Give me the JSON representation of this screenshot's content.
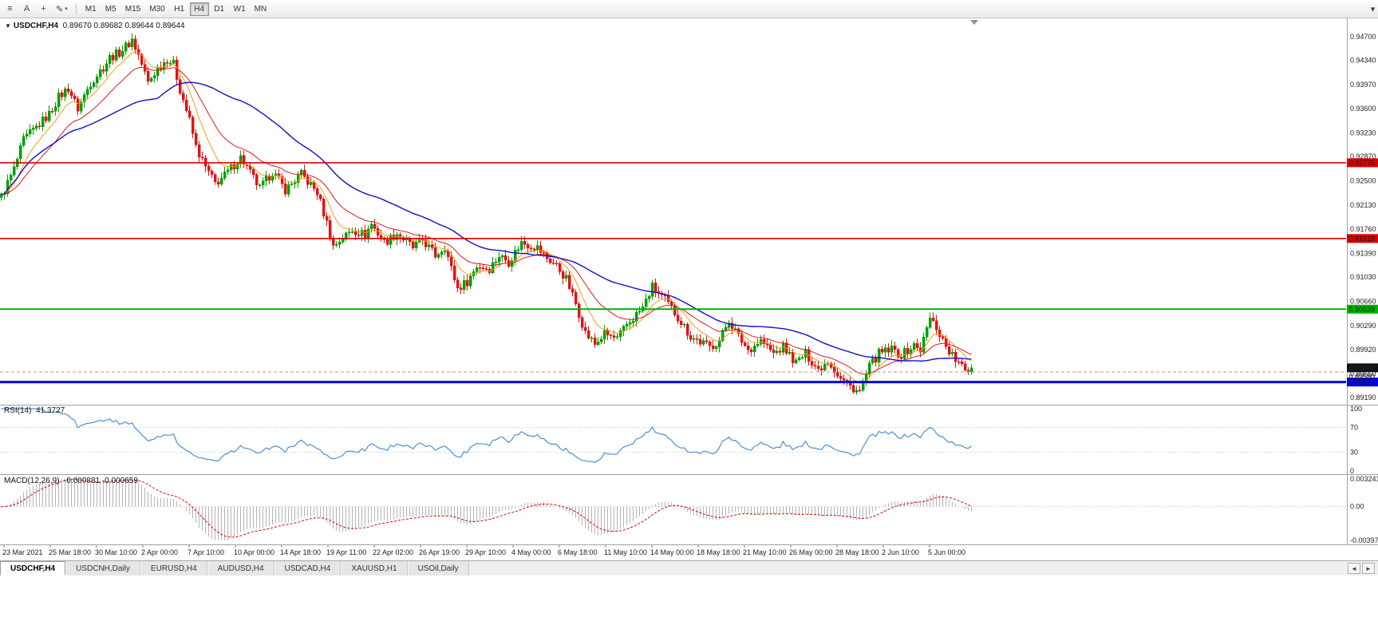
{
  "toolbar": {
    "hamburger_icon": "≡",
    "text_tool_label": "A",
    "crosshair_icon": "+",
    "pencil_icon": "✎",
    "dropdown_icon": "▾",
    "overflow_icon": "▾",
    "timeframes": [
      {
        "label": "M1",
        "active": false
      },
      {
        "label": "M5",
        "active": false
      },
      {
        "label": "M15",
        "active": false
      },
      {
        "label": "M30",
        "active": false
      },
      {
        "label": "H1",
        "active": false
      },
      {
        "label": "H4",
        "active": true
      },
      {
        "label": "D1",
        "active": false
      },
      {
        "label": "W1",
        "active": false
      },
      {
        "label": "MN",
        "active": false
      }
    ]
  },
  "chart": {
    "expand_icon": "▼",
    "symbol": "USDCHF,H4",
    "ohlc": "0.89670 0.89682 0.89644 0.89644",
    "price_axis": [
      "0.94700",
      "0.94340",
      "0.93970",
      "0.93600",
      "0.93230",
      "0.92870",
      "0.92500",
      "0.92130",
      "0.91760",
      "0.91390",
      "0.91030",
      "0.90660",
      "0.90290",
      "0.89920",
      "0.89550",
      "0.89190"
    ],
    "levels": [
      {
        "price": 0.92775,
        "label": "0.92775",
        "color": "#dd0000",
        "line_width": 1.6
      },
      {
        "price": 0.91618,
        "label": "0.91618",
        "color": "#dd0000",
        "line_width": 1.6
      },
      {
        "price": 0.90539,
        "label": "0.90539",
        "color": "#00b300",
        "line_width": 2
      },
      {
        "price": 0.89427,
        "label": "0.89427",
        "color": "#0000ee",
        "line_width": 3
      }
    ],
    "current_price": {
      "label": "0.89644",
      "value": 0.89644,
      "badge_color": "#111111"
    },
    "bid": {
      "label": "0.89580",
      "value": 0.8958
    },
    "candle_count": 305,
    "ma_periods": {
      "fast": 9,
      "mid": 21,
      "slow": 50
    },
    "colors": {
      "up": "#00a000",
      "down": "#e81010",
      "ma_fast": "#f0a010",
      "ma_mid": "#e01818",
      "ma_slow": "#1010c8",
      "rsi": "#4a90d8",
      "macd_hist": "#b4b4b4",
      "macd_signal": "#e00000",
      "bid_line": "#a0a0a0",
      "separator": "#a0a0a0",
      "guide": "#c8c8c8",
      "shift_marker": "#909090"
    },
    "anchors": [
      [
        0,
        0.9225
      ],
      [
        4,
        0.9268
      ],
      [
        7,
        0.9312
      ],
      [
        11,
        0.9332
      ],
      [
        15,
        0.9352
      ],
      [
        18,
        0.9378
      ],
      [
        21,
        0.9392
      ],
      [
        24,
        0.936
      ],
      [
        28,
        0.94
      ],
      [
        32,
        0.9424
      ],
      [
        34,
        0.9438
      ],
      [
        37,
        0.9446
      ],
      [
        40,
        0.946
      ],
      [
        41,
        0.9466
      ],
      [
        43,
        0.9442
      ],
      [
        46,
        0.94
      ],
      [
        49,
        0.9422
      ],
      [
        52,
        0.9436
      ],
      [
        54,
        0.9428
      ],
      [
        56,
        0.939
      ],
      [
        59,
        0.9342
      ],
      [
        61,
        0.9302
      ],
      [
        64,
        0.927
      ],
      [
        67,
        0.9246
      ],
      [
        70,
        0.9258
      ],
      [
        75,
        0.9286
      ],
      [
        78,
        0.9262
      ],
      [
        81,
        0.9238
      ],
      [
        85,
        0.9264
      ],
      [
        89,
        0.9236
      ],
      [
        94,
        0.926
      ],
      [
        99,
        0.9232
      ],
      [
        102,
        0.9186
      ],
      [
        104,
        0.915
      ],
      [
        107,
        0.9163
      ],
      [
        110,
        0.9175
      ],
      [
        114,
        0.9168
      ],
      [
        116,
        0.9184
      ],
      [
        120,
        0.9156
      ],
      [
        124,
        0.917
      ],
      [
        129,
        0.9148
      ],
      [
        132,
        0.916
      ],
      [
        136,
        0.9136
      ],
      [
        139,
        0.915
      ],
      [
        141,
        0.9116
      ],
      [
        143,
        0.9086
      ],
      [
        146,
        0.9096
      ],
      [
        149,
        0.912
      ],
      [
        153,
        0.9116
      ],
      [
        156,
        0.9136
      ],
      [
        159,
        0.9126
      ],
      [
        163,
        0.9156
      ],
      [
        168,
        0.9148
      ],
      [
        171,
        0.9132
      ],
      [
        174,
        0.912
      ],
      [
        177,
        0.91
      ],
      [
        180,
        0.9062
      ],
      [
        183,
        0.9018
      ],
      [
        186,
        0.9
      ],
      [
        189,
        0.9016
      ],
      [
        193,
        0.9008
      ],
      [
        196,
        0.903
      ],
      [
        201,
        0.9056
      ],
      [
        204,
        0.9088
      ],
      [
        208,
        0.9068
      ],
      [
        212,
        0.9042
      ],
      [
        216,
        0.9012
      ],
      [
        222,
        0.8996
      ],
      [
        225,
        0.9006
      ],
      [
        228,
        0.9038
      ],
      [
        231,
        0.9012
      ],
      [
        234,
        0.8992
      ],
      [
        238,
        0.9006
      ],
      [
        242,
        0.8986
      ],
      [
        245,
        0.8996
      ],
      [
        249,
        0.8972
      ],
      [
        252,
        0.8986
      ],
      [
        256,
        0.8962
      ],
      [
        259,
        0.8976
      ],
      [
        263,
        0.8948
      ],
      [
        266,
        0.8936
      ],
      [
        269,
        0.8928
      ],
      [
        272,
        0.8966
      ],
      [
        275,
        0.8986
      ],
      [
        279,
        0.8992
      ],
      [
        282,
        0.8984
      ],
      [
        286,
        0.8998
      ],
      [
        288,
        0.8992
      ],
      [
        291,
        0.904
      ],
      [
        293,
        0.9026
      ],
      [
        296,
        0.8998
      ],
      [
        299,
        0.8976
      ],
      [
        302,
        0.896
      ],
      [
        304,
        0.8964
      ]
    ]
  },
  "rsi": {
    "label": "RSI(14)",
    "value": "41.3727",
    "period": 14,
    "axis_labels": [
      "100",
      "70",
      "30",
      "0"
    ],
    "axis_values": [
      100,
      70,
      30,
      0
    ],
    "guide_levels": [
      70,
      30
    ]
  },
  "macd": {
    "label": "MACD(12,26,9)",
    "values": "-0.000881 -0.000659",
    "fast": 12,
    "slow": 26,
    "signal": 9,
    "max": 0.003241,
    "min": -0.003976,
    "axis_labels": [
      "0.003241",
      "0.00",
      "-0.003976"
    ]
  },
  "time_axis": {
    "labels": [
      "23 Mar 2021",
      "25 Mar 18:00",
      "30 Mar 10:00",
      "2 Apr 00:00",
      "7 Apr 10:00",
      "10 Apr 00:00",
      "14 Apr 18:00",
      "19 Apr 11:00",
      "22 Apr 02:00",
      "26 Apr 19:00",
      "29 Apr 10:00",
      "4 May 00:00",
      "6 May 18:00",
      "11 May 10:00",
      "14 May 00:00",
      "18 May 18:00",
      "21 May 10:00",
      "26 May 00:00",
      "28 May 18:00",
      "2 Jun 10:00",
      "5 Jun 00:00"
    ]
  },
  "tabs": {
    "scroll_left_icon": "◄",
    "scroll_right_icon": "►",
    "items": [
      {
        "label": "USDCHF,H4",
        "active": true
      },
      {
        "label": "USDCNH,Daily",
        "active": false
      },
      {
        "label": "EURUSD,H4",
        "active": false
      },
      {
        "label": "AUDUSD,H4",
        "active": false
      },
      {
        "label": "USDCAD,H4",
        "active": false
      },
      {
        "label": "XAUUSD,H1",
        "active": false
      },
      {
        "label": "USOil,Daily",
        "active": false
      }
    ]
  }
}
